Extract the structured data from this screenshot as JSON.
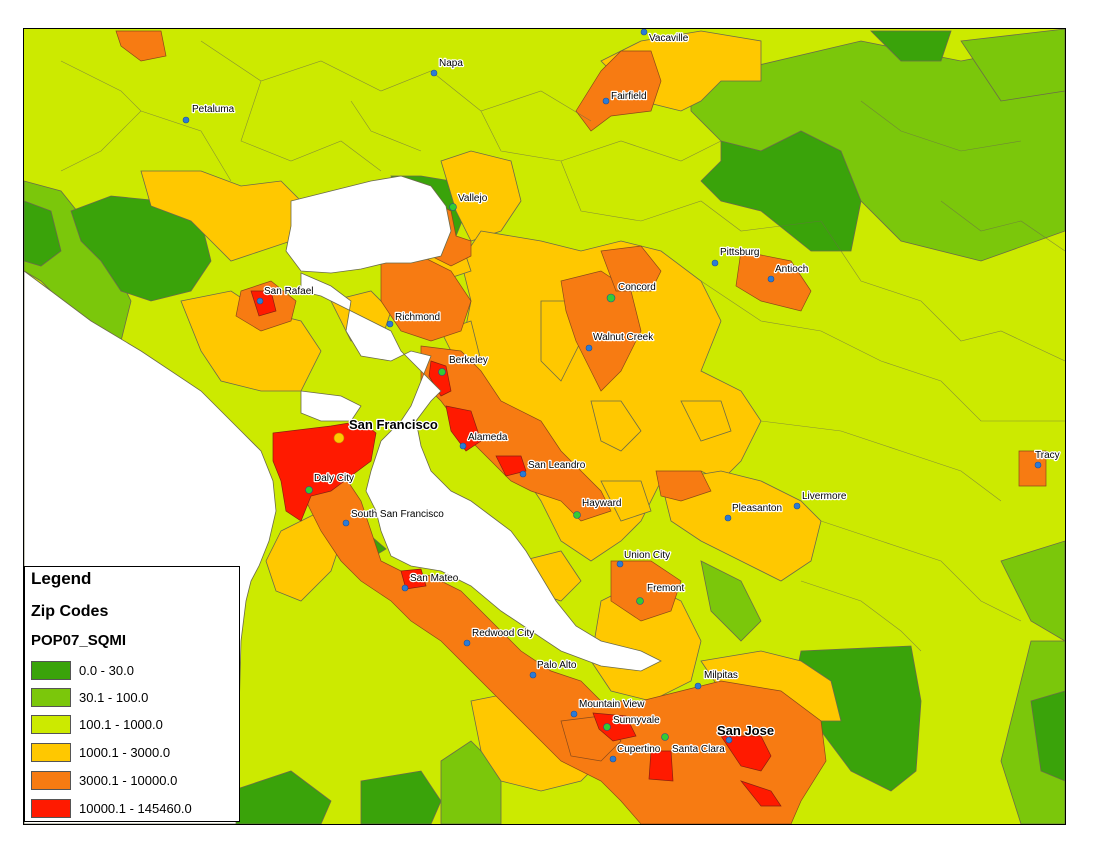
{
  "legend": {
    "title": "Legend",
    "layer": "Zip Codes",
    "field": "POP07_SQMI",
    "classes": [
      {
        "label": "0.0 - 30.0",
        "color": "#3aa30a"
      },
      {
        "label": "30.1 - 100.0",
        "color": "#7bc70b"
      },
      {
        "label": "100.1 - 1000.0",
        "color": "#ccea00"
      },
      {
        "label": "1000.1 - 3000.0",
        "color": "#ffc800"
      },
      {
        "label": "3000.1 - 10000.0",
        "color": "#f77b12"
      },
      {
        "label": "10000.1 - 145460.0",
        "color": "#ff1a00"
      }
    ]
  },
  "colors": {
    "water": "#ffffff",
    "boundary": "#6b6b4a",
    "city_point": "#2b7bd6",
    "city_point_major": "#33cc33"
  },
  "cities": [
    {
      "name": "Vacaville",
      "size": "small"
    },
    {
      "name": "Napa",
      "size": "small"
    },
    {
      "name": "Petaluma",
      "size": "small"
    },
    {
      "name": "Fairfield",
      "size": "small"
    },
    {
      "name": "Vallejo",
      "size": "small"
    },
    {
      "name": "Pittsburg",
      "size": "small"
    },
    {
      "name": "Antioch",
      "size": "small"
    },
    {
      "name": "Concord",
      "size": "small"
    },
    {
      "name": "San Rafael",
      "size": "small"
    },
    {
      "name": "Richmond",
      "size": "small"
    },
    {
      "name": "Walnut Creek",
      "size": "small"
    },
    {
      "name": "Berkeley",
      "size": "small"
    },
    {
      "name": "San Francisco",
      "size": "big"
    },
    {
      "name": "Alameda",
      "size": "small"
    },
    {
      "name": "San Leandro",
      "size": "small"
    },
    {
      "name": "Tracy",
      "size": "small"
    },
    {
      "name": "Daly City",
      "size": "small"
    },
    {
      "name": "Hayward",
      "size": "small"
    },
    {
      "name": "Livermore",
      "size": "small"
    },
    {
      "name": "Pleasanton",
      "size": "small"
    },
    {
      "name": "South San Francisco",
      "size": "small"
    },
    {
      "name": "Union City",
      "size": "small"
    },
    {
      "name": "Fremont",
      "size": "small"
    },
    {
      "name": "San Mateo",
      "size": "small"
    },
    {
      "name": "Redwood City",
      "size": "small"
    },
    {
      "name": "Palo Alto",
      "size": "small"
    },
    {
      "name": "Milpitas",
      "size": "small"
    },
    {
      "name": "Mountain View",
      "size": "small"
    },
    {
      "name": "Sunnyvale",
      "size": "small"
    },
    {
      "name": "San Jose",
      "size": "big"
    },
    {
      "name": "Cupertino",
      "size": "small"
    },
    {
      "name": "Santa Clara",
      "size": "small"
    }
  ]
}
